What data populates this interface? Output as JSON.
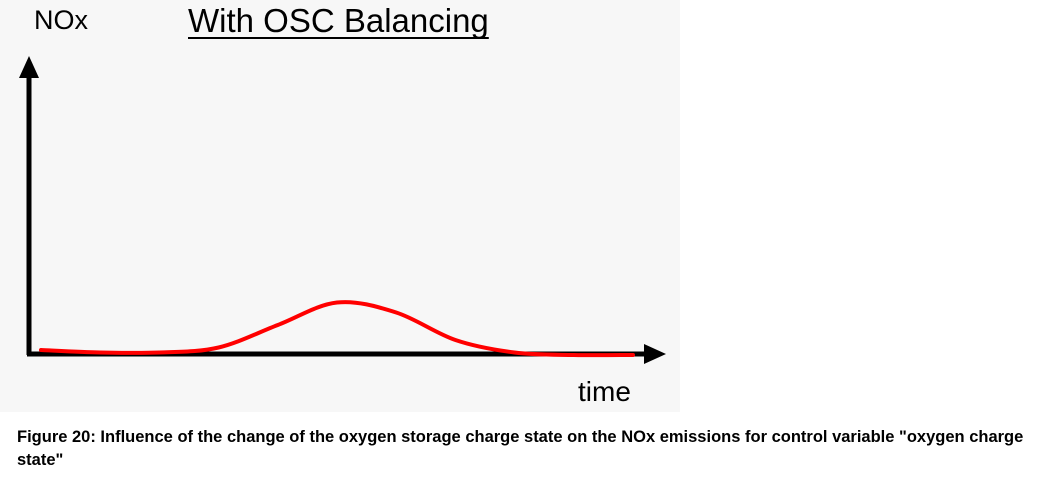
{
  "chart_data": {
    "type": "line",
    "title": "With OSC Balancing",
    "ylabel": "NOx",
    "xlabel": "time",
    "grid": false,
    "legend": "none",
    "series": [
      {
        "color": "#ff0000",
        "x": [
          0,
          0.1,
          0.2,
          0.3,
          0.4,
          0.5,
          0.6,
          0.7,
          0.8,
          0.9,
          1.0
        ],
        "y": [
          0.12,
          0.11,
          0.11,
          0.13,
          0.22,
          0.31,
          0.27,
          0.16,
          0.11,
          0.1,
          0.1
        ]
      }
    ],
    "colors": {
      "axis": "#000000",
      "line": "#ff0000",
      "background": "#f7f7f7"
    }
  },
  "caption": {
    "text": "Figure 20: Influence of the change of the oxygen storage charge state on the NOx emissions for control variable \"oxygen charge state\""
  }
}
